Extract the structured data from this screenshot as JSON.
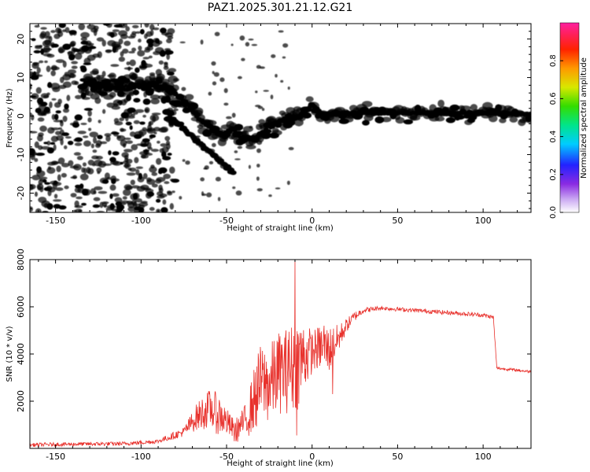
{
  "title": "PAZ1.2025.301.21.12.G21",
  "colors": {
    "snr_line": "#e8312c",
    "axis": "#000000"
  },
  "chart_data": [
    {
      "type": "heatmap",
      "name": "spectrogram",
      "xlabel": "Height of straight line (km)",
      "ylabel": "Frequency (Hz)",
      "xlim": [
        -165,
        128
      ],
      "ylim": [
        -25,
        24
      ],
      "xticks": [
        -150,
        -100,
        -50,
        0,
        50,
        100
      ],
      "yticks": [
        -20,
        -10,
        0,
        10,
        20
      ],
      "colorbar": {
        "label": "Normalized spectral amplitude",
        "range": [
          0,
          1
        ],
        "ticks": [
          "0.0",
          "0.2",
          "0.4",
          "0.6",
          "0.8"
        ],
        "tick_values": [
          0.0,
          0.2,
          0.4,
          0.6,
          0.8
        ]
      },
      "ridge": {
        "description": "dominant frequency track vs height",
        "x": [
          -132,
          -120,
          -110,
          -100,
          -90,
          -82,
          -76,
          -70,
          -64,
          -58,
          -52,
          -46,
          -40,
          -34,
          -30,
          -26,
          -22,
          -18,
          -14,
          -10,
          -5,
          0,
          5,
          10,
          20,
          40,
          60,
          80,
          100,
          110,
          128
        ],
        "y": [
          8.5,
          7.6,
          7.4,
          7.8,
          8.2,
          6.5,
          4.2,
          1.5,
          -1.5,
          -3.5,
          -5.0,
          -3.5,
          -6.2,
          -6.0,
          -4.5,
          -3.5,
          -2.0,
          -1.5,
          -0.5,
          -0.5,
          0.5,
          3.0,
          0.8,
          0.5,
          0.8,
          0.8,
          0.8,
          0.8,
          0.8,
          0.6,
          0.6
        ]
      },
      "secondary_branch": {
        "x": [
          -85,
          -78,
          -72,
          -66,
          -60,
          -55,
          -50,
          -46
        ],
        "y": [
          -0.5,
          -2.0,
          -4.5,
          -7.0,
          -9.0,
          -11.0,
          -13.5,
          -14.5
        ]
      }
    },
    {
      "type": "line",
      "name": "snr",
      "xlabel": "Height of straight line (km)",
      "ylabel": "SNR (10 * v/v)",
      "xlim": [
        -165,
        128
      ],
      "ylim": [
        0,
        8000
      ],
      "xticks": [
        -150,
        -100,
        -50,
        0,
        50,
        100
      ],
      "yticks": [
        2000,
        4000,
        6000,
        8000
      ],
      "envelope": {
        "description": "approximate SNR level vs height (data units)",
        "x": [
          -165,
          -140,
          -110,
          -90,
          -75,
          -68,
          -60,
          -52,
          -45,
          -38,
          -30,
          -25,
          -20,
          -15,
          -10,
          -5,
          0,
          5,
          10,
          15,
          20,
          25,
          30,
          40,
          50,
          60,
          70,
          80,
          90,
          100,
          106,
          108,
          115,
          128
        ],
        "y": [
          150,
          180,
          200,
          300,
          700,
          1300,
          1700,
          1300,
          700,
          1300,
          2800,
          2700,
          3200,
          3300,
          3500,
          3900,
          4100,
          4300,
          4200,
          4600,
          5200,
          5600,
          5850,
          5950,
          5900,
          5850,
          5800,
          5750,
          5700,
          5650,
          5550,
          3400,
          3350,
          3250
        ]
      },
      "noise_amplitude": {
        "x": [
          -165,
          -90,
          -75,
          -65,
          -55,
          -48,
          -40,
          -32,
          -24,
          -16,
          -8,
          0,
          10,
          20,
          30,
          40,
          100,
          106,
          107,
          128
        ],
        "y": [
          80,
          90,
          200,
          700,
          900,
          500,
          600,
          1600,
          1700,
          1800,
          2000,
          900,
          1000,
          300,
          120,
          90,
          90,
          90,
          60,
          60
        ]
      },
      "spikes": [
        {
          "x": -10,
          "y": 8000
        },
        {
          "x": -8,
          "y": 4700
        },
        {
          "x": -14,
          "y": 4600
        },
        {
          "x": -20,
          "y": 4500
        },
        {
          "x": -9,
          "y": 550
        },
        {
          "x": 12,
          "y": 2300
        },
        {
          "x": 7,
          "y": 5200
        }
      ]
    }
  ]
}
